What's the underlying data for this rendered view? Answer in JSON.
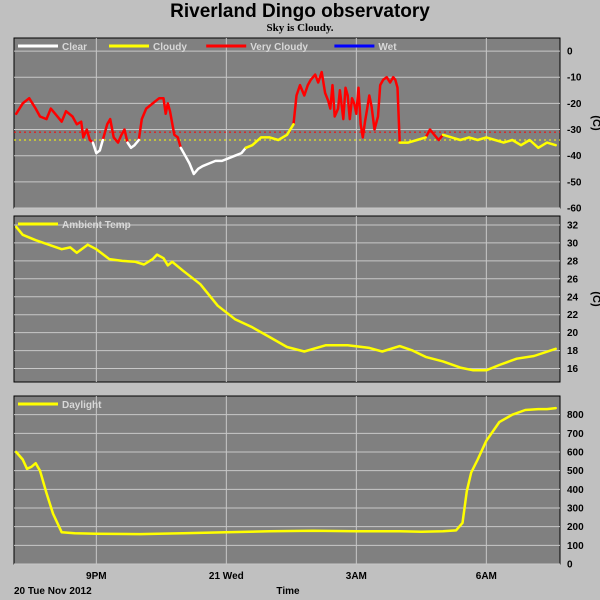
{
  "title": "Riverland Dingo observatory",
  "subtitle": "Sky is Cloudy.",
  "colors": {
    "page_bg": "#c0c0c0",
    "plot_bg": "#808080",
    "grid": "#c8c8c8",
    "clear": "#ffffff",
    "cloudy": "#ffff00",
    "very_cloudy": "#ff0000",
    "wet": "#0000ff",
    "legend_text": "#d8d8d8"
  },
  "x_axis": {
    "label": "Time",
    "date_label": "20 Tue Nov 2012",
    "ticks": [
      {
        "h": 21,
        "label": "9PM"
      },
      {
        "h": 24,
        "label": "21 Wed"
      },
      {
        "h": 27,
        "label": "3AM"
      },
      {
        "h": 30,
        "label": "6AM"
      }
    ],
    "xlim_hours": [
      19.1,
      31.7
    ]
  },
  "chart_data": [
    {
      "type": "line",
      "panel": "sky",
      "ylabel": "(C)",
      "ylim": [
        -60,
        5
      ],
      "yticks": [
        0,
        -10,
        -20,
        -30,
        -40,
        -50,
        -60
      ],
      "grid": true,
      "legend": [
        "Clear",
        "Cloudy",
        "Very Cloudy",
        "Wet"
      ],
      "thresholds": [
        {
          "value": -31,
          "color": "#ff0000"
        },
        {
          "value": -34,
          "color": "#ffff00"
        }
      ],
      "series": [
        {
          "name": "Very Cloudy",
          "color": "#ff0000",
          "segments": [
            [
              [
                19.15,
                -24
              ],
              [
                19.3,
                -20
              ],
              [
                19.45,
                -18
              ],
              [
                19.6,
                -22
              ],
              [
                19.7,
                -25
              ],
              [
                19.85,
                -26
              ],
              [
                19.95,
                -22
              ],
              [
                20.05,
                -24
              ],
              [
                20.2,
                -27
              ],
              [
                20.3,
                -23
              ],
              [
                20.45,
                -25
              ],
              [
                20.55,
                -28
              ],
              [
                20.65,
                -27
              ],
              [
                20.7,
                -33
              ],
              [
                20.78,
                -30
              ],
              [
                20.85,
                -34
              ],
              [
                20.92,
                -35
              ]
            ],
            [
              [
                21.15,
                -34
              ],
              [
                21.25,
                -28
              ],
              [
                21.32,
                -26
              ],
              [
                21.4,
                -33
              ],
              [
                21.5,
                -35
              ],
              [
                21.58,
                -32
              ],
              [
                21.65,
                -30
              ],
              [
                21.72,
                -35
              ]
            ],
            [
              [
                21.98,
                -34
              ],
              [
                22.05,
                -26
              ],
              [
                22.15,
                -22
              ],
              [
                22.3,
                -20
              ],
              [
                22.45,
                -18
              ],
              [
                22.55,
                -18
              ],
              [
                22.6,
                -24
              ],
              [
                22.65,
                -20
              ],
              [
                22.7,
                -23
              ],
              [
                22.8,
                -32
              ],
              [
                22.88,
                -33
              ],
              [
                22.95,
                -37
              ]
            ],
            [
              [
                25.55,
                -28
              ],
              [
                25.62,
                -17
              ],
              [
                25.7,
                -13
              ],
              [
                25.8,
                -17
              ],
              [
                25.88,
                -13
              ],
              [
                25.95,
                -11
              ],
              [
                26.05,
                -9
              ],
              [
                26.12,
                -12
              ],
              [
                26.2,
                -8
              ],
              [
                26.28,
                -16
              ],
              [
                26.35,
                -19
              ],
              [
                26.4,
                -22
              ],
              [
                26.45,
                -13
              ],
              [
                26.5,
                -25
              ],
              [
                26.58,
                -22
              ],
              [
                26.62,
                -15
              ],
              [
                26.7,
                -26
              ],
              [
                26.75,
                -14
              ],
              [
                26.8,
                -17
              ],
              [
                26.85,
                -26
              ],
              [
                26.9,
                -18
              ],
              [
                26.95,
                -20
              ],
              [
                27.0,
                -24
              ],
              [
                27.05,
                -14
              ],
              [
                27.1,
                -28
              ],
              [
                27.15,
                -33
              ],
              [
                27.2,
                -27
              ],
              [
                27.25,
                -22
              ],
              [
                27.3,
                -17
              ],
              [
                27.35,
                -21
              ],
              [
                27.42,
                -30
              ],
              [
                27.5,
                -25
              ],
              [
                27.55,
                -13
              ],
              [
                27.62,
                -11
              ],
              [
                27.7,
                -10
              ],
              [
                27.78,
                -12
              ],
              [
                27.85,
                -10
              ],
              [
                27.9,
                -11
              ],
              [
                27.95,
                -14
              ],
              [
                28.0,
                -35
              ]
            ],
            [
              [
                28.6,
                -33
              ],
              [
                28.7,
                -30
              ],
              [
                28.8,
                -32
              ],
              [
                28.9,
                -34
              ],
              [
                29.0,
                -32
              ]
            ]
          ]
        },
        {
          "name": "Clear",
          "color": "#ffffff",
          "segments": [
            [
              [
                20.92,
                -35
              ],
              [
                21.0,
                -39
              ],
              [
                21.08,
                -38
              ],
              [
                21.15,
                -34
              ]
            ],
            [
              [
                21.72,
                -35
              ],
              [
                21.8,
                -37
              ],
              [
                21.88,
                -36
              ],
              [
                21.98,
                -34
              ]
            ],
            [
              [
                22.95,
                -37
              ],
              [
                23.05,
                -40
              ],
              [
                23.15,
                -43
              ],
              [
                23.25,
                -47
              ],
              [
                23.35,
                -45
              ],
              [
                23.45,
                -44
              ],
              [
                23.6,
                -43
              ],
              [
                23.75,
                -42
              ],
              [
                23.9,
                -42
              ],
              [
                24.05,
                -41
              ],
              [
                24.2,
                -40
              ],
              [
                24.35,
                -39
              ],
              [
                24.45,
                -37
              ]
            ]
          ]
        },
        {
          "name": "Cloudy",
          "color": "#ffff00",
          "segments": [
            [
              [
                24.45,
                -37
              ],
              [
                24.6,
                -36
              ],
              [
                24.8,
                -33
              ],
              [
                25.0,
                -33
              ],
              [
                25.2,
                -34
              ],
              [
                25.4,
                -32
              ],
              [
                25.55,
                -28
              ]
            ],
            [
              [
                28.0,
                -35
              ],
              [
                28.2,
                -35
              ],
              [
                28.4,
                -34
              ],
              [
                28.6,
                -33
              ]
            ],
            [
              [
                29.0,
                -32
              ],
              [
                29.2,
                -33
              ],
              [
                29.4,
                -34
              ],
              [
                29.6,
                -33
              ],
              [
                29.8,
                -34
              ],
              [
                30.0,
                -33
              ],
              [
                30.2,
                -34
              ],
              [
                30.4,
                -35
              ],
              [
                30.6,
                -34
              ],
              [
                30.8,
                -36
              ],
              [
                31.0,
                -34
              ],
              [
                31.2,
                -37
              ],
              [
                31.4,
                -35
              ],
              [
                31.6,
                -36
              ]
            ]
          ]
        },
        {
          "name": "Wet",
          "color": "#0000ff",
          "segments": []
        }
      ]
    },
    {
      "type": "line",
      "panel": "ambient",
      "ylabel": "(C)",
      "ylim": [
        14.5,
        33
      ],
      "yticks": [
        32,
        30,
        28,
        26,
        24,
        22,
        20,
        18,
        16
      ],
      "grid": true,
      "legend": [
        "Ambient Temp"
      ],
      "series": [
        {
          "name": "Ambient Temp",
          "color": "#ffff00",
          "segments": [
            [
              [
                19.15,
                31.8
              ],
              [
                19.3,
                30.9
              ],
              [
                19.6,
                30.3
              ],
              [
                19.9,
                29.8
              ],
              [
                20.2,
                29.3
              ],
              [
                20.4,
                29.5
              ],
              [
                20.55,
                28.9
              ],
              [
                20.8,
                29.8
              ],
              [
                21.0,
                29.3
              ],
              [
                21.3,
                28.2
              ],
              [
                21.6,
                28.0
              ],
              [
                21.9,
                27.9
              ],
              [
                22.1,
                27.6
              ],
              [
                22.3,
                28.2
              ],
              [
                22.4,
                28.7
              ],
              [
                22.55,
                28.3
              ],
              [
                22.65,
                27.5
              ],
              [
                22.75,
                27.9
              ],
              [
                23.0,
                26.9
              ],
              [
                23.4,
                25.4
              ],
              [
                23.8,
                23.0
              ],
              [
                24.2,
                21.5
              ],
              [
                24.6,
                20.6
              ],
              [
                25.0,
                19.5
              ],
              [
                25.4,
                18.4
              ],
              [
                25.8,
                17.9
              ],
              [
                26.3,
                18.6
              ],
              [
                26.8,
                18.6
              ],
              [
                27.3,
                18.3
              ],
              [
                27.6,
                17.9
              ],
              [
                28.0,
                18.5
              ],
              [
                28.3,
                18.0
              ],
              [
                28.6,
                17.3
              ],
              [
                29.0,
                16.8
              ],
              [
                29.4,
                16.1
              ],
              [
                29.7,
                15.8
              ],
              [
                30.0,
                15.8
              ],
              [
                30.3,
                16.4
              ],
              [
                30.7,
                17.1
              ],
              [
                31.1,
                17.4
              ],
              [
                31.6,
                18.2
              ]
            ]
          ]
        }
      ]
    },
    {
      "type": "line",
      "panel": "daylight",
      "ylabel": "",
      "ylim": [
        0,
        900
      ],
      "yticks": [
        800,
        700,
        600,
        500,
        400,
        300,
        200,
        100,
        0
      ],
      "grid": true,
      "legend": [
        "Daylight"
      ],
      "series": [
        {
          "name": "Daylight",
          "color": "#ffff00",
          "segments": [
            [
              [
                19.15,
                600
              ],
              [
                19.3,
                560
              ],
              [
                19.4,
                510
              ],
              [
                19.5,
                520
              ],
              [
                19.6,
                540
              ],
              [
                19.7,
                500
              ],
              [
                19.85,
                380
              ],
              [
                20.0,
                270
              ],
              [
                20.2,
                170
              ],
              [
                20.5,
                165
              ],
              [
                21.0,
                162
              ],
              [
                22.0,
                160
              ],
              [
                23.0,
                165
              ],
              [
                24.0,
                170
              ],
              [
                25.0,
                175
              ],
              [
                26.0,
                178
              ],
              [
                27.0,
                175
              ],
              [
                28.0,
                175
              ],
              [
                28.5,
                173
              ],
              [
                29.0,
                175
              ],
              [
                29.3,
                180
              ],
              [
                29.45,
                220
              ],
              [
                29.55,
                390
              ],
              [
                29.65,
                490
              ],
              [
                29.8,
                560
              ],
              [
                30.0,
                660
              ],
              [
                30.3,
                760
              ],
              [
                30.6,
                800
              ],
              [
                30.9,
                825
              ],
              [
                31.2,
                830
              ],
              [
                31.4,
                830
              ],
              [
                31.6,
                835
              ]
            ]
          ]
        }
      ]
    }
  ]
}
